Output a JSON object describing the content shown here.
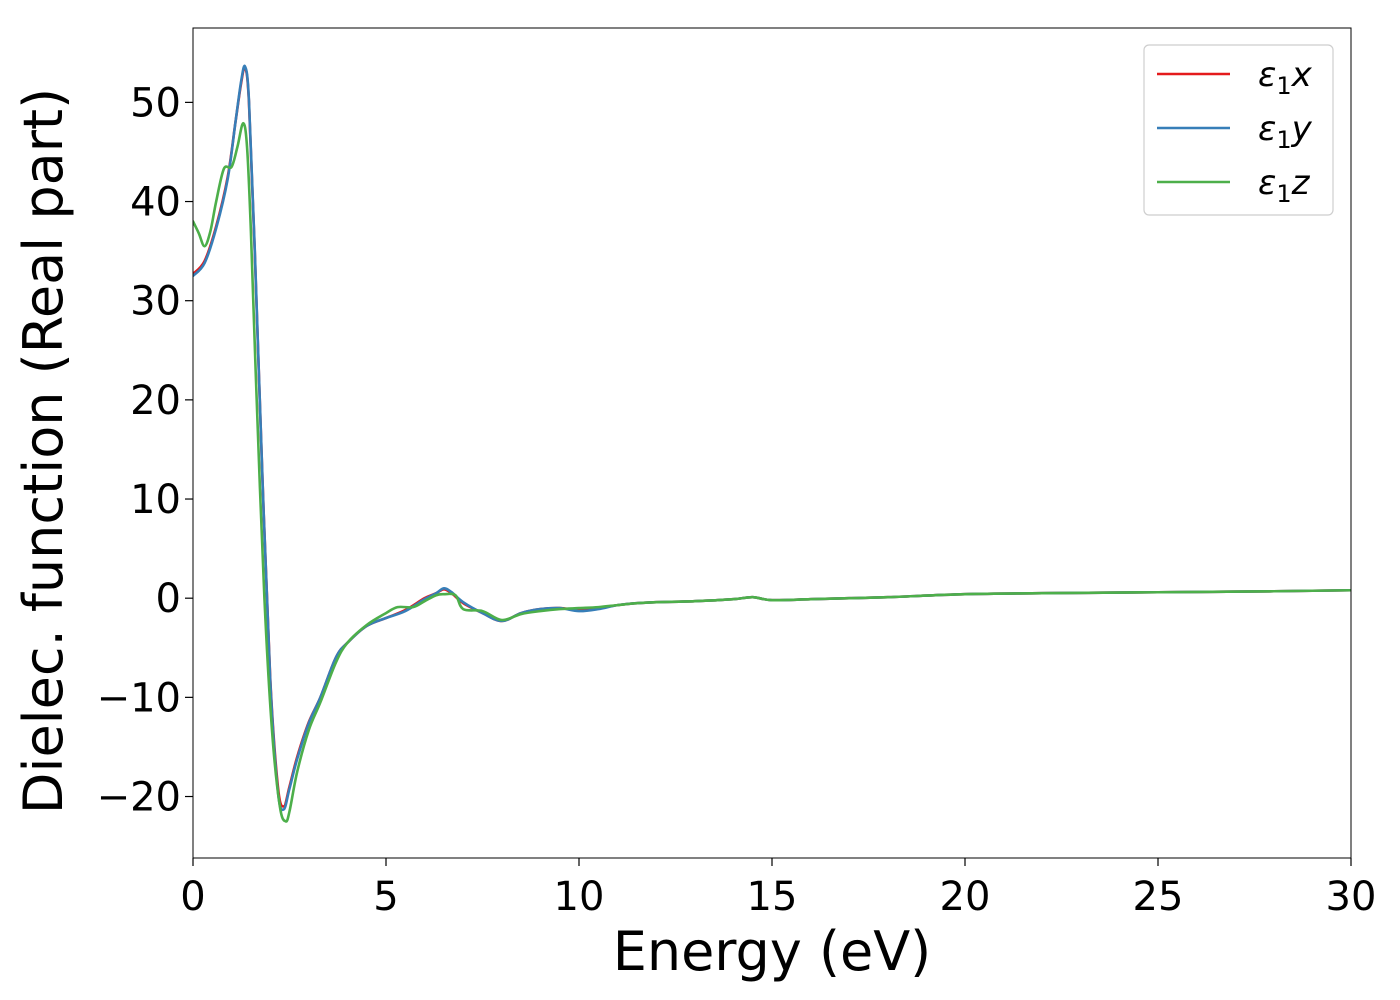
{
  "chart_data": {
    "type": "line",
    "title": "",
    "xlabel": "Energy (eV)",
    "ylabel": "Dielec. function (Real part)",
    "xlim": [
      0,
      30
    ],
    "ylim": [
      -26.2,
      57.5
    ],
    "xticks": [
      0,
      5,
      10,
      15,
      20,
      25,
      30
    ],
    "xtick_labels": [
      "0",
      "5",
      "10",
      "15",
      "20",
      "25",
      "30"
    ],
    "yticks": [
      -20,
      -10,
      0,
      10,
      20,
      30,
      40,
      50
    ],
    "ytick_labels": [
      "−20",
      "−10",
      "0",
      "10",
      "20",
      "30",
      "40",
      "50"
    ],
    "grid": false,
    "legend_position": "top-right",
    "series": [
      {
        "name": "ε₁x",
        "legend_base": "ε",
        "legend_sub": "1",
        "legend_var": "x",
        "color": "#e41a1c",
        "x": [
          0,
          0.3,
          0.6,
          0.9,
          1.1,
          1.25,
          1.35,
          1.45,
          1.6,
          1.8,
          2.0,
          2.2,
          2.35,
          2.5,
          2.7,
          3.0,
          3.3,
          3.7,
          4.0,
          4.5,
          5.0,
          5.5,
          6.0,
          6.3,
          6.5,
          6.7,
          7.0,
          7.5,
          8.0,
          8.5,
          9.0,
          9.5,
          10.0,
          10.5,
          11.0,
          11.5,
          12.0,
          13.0,
          14.0,
          14.5,
          15.0,
          16.0,
          17.0,
          18.0,
          20.0,
          22.0,
          25.0,
          28.0,
          30.0
        ],
        "y": [
          32.7,
          34.0,
          37.5,
          42.5,
          48.0,
          52.0,
          53.5,
          50.0,
          35.0,
          12.0,
          -8.0,
          -19.0,
          -21.0,
          -19.0,
          -16.0,
          -12.5,
          -10.0,
          -6.0,
          -4.5,
          -2.8,
          -2.0,
          -1.2,
          0.0,
          0.5,
          0.9,
          0.5,
          -0.5,
          -1.5,
          -2.3,
          -1.5,
          -1.1,
          -1.0,
          -1.2,
          -1.0,
          -0.7,
          -0.5,
          -0.4,
          -0.3,
          -0.1,
          0.1,
          -0.2,
          -0.1,
          0.0,
          0.1,
          0.4,
          0.5,
          0.6,
          0.7,
          0.8
        ]
      },
      {
        "name": "ε₁y",
        "legend_base": "ε",
        "legend_sub": "1",
        "legend_var": "y",
        "color": "#377eb8",
        "x": [
          0,
          0.3,
          0.6,
          0.9,
          1.1,
          1.25,
          1.35,
          1.45,
          1.6,
          1.8,
          2.0,
          2.2,
          2.35,
          2.5,
          2.7,
          3.0,
          3.3,
          3.7,
          4.0,
          4.5,
          5.0,
          5.5,
          6.0,
          6.3,
          6.5,
          6.7,
          7.0,
          7.5,
          8.0,
          8.5,
          9.0,
          9.5,
          10.0,
          10.5,
          11.0,
          11.5,
          12.0,
          13.0,
          14.0,
          14.5,
          15.0,
          16.0,
          17.0,
          18.0,
          20.0,
          22.0,
          25.0,
          28.0,
          30.0
        ],
        "y": [
          32.5,
          33.8,
          37.3,
          42.3,
          48.0,
          52.2,
          53.6,
          50.2,
          35.2,
          12.0,
          -8.2,
          -19.5,
          -21.3,
          -19.2,
          -16.2,
          -12.6,
          -10.0,
          -6.0,
          -4.5,
          -2.8,
          -2.0,
          -1.3,
          -0.1,
          0.5,
          1.0,
          0.6,
          -0.4,
          -1.5,
          -2.3,
          -1.5,
          -1.1,
          -1.0,
          -1.3,
          -1.1,
          -0.7,
          -0.5,
          -0.4,
          -0.3,
          -0.1,
          0.1,
          -0.2,
          -0.1,
          0.0,
          0.1,
          0.4,
          0.5,
          0.6,
          0.7,
          0.8
        ]
      },
      {
        "name": "ε₁z",
        "legend_base": "ε",
        "legend_sub": "1",
        "legend_var": "z",
        "color": "#4daf4a",
        "x": [
          0,
          0.15,
          0.3,
          0.45,
          0.6,
          0.8,
          1.0,
          1.15,
          1.3,
          1.4,
          1.5,
          1.65,
          1.85,
          2.05,
          2.25,
          2.4,
          2.5,
          2.7,
          3.0,
          3.3,
          3.7,
          4.0,
          4.5,
          5.0,
          5.3,
          5.7,
          6.0,
          6.3,
          6.5,
          6.8,
          7.0,
          7.5,
          8.0,
          8.5,
          9.0,
          9.5,
          10.0,
          10.5,
          11.0,
          11.5,
          12.0,
          13.0,
          14.0,
          14.5,
          15.0,
          16.0,
          17.0,
          18.0,
          20.0,
          22.0,
          25.0,
          28.0,
          30.0
        ],
        "y": [
          38.0,
          36.8,
          35.5,
          37.0,
          40.0,
          43.3,
          43.5,
          45.5,
          47.9,
          45.5,
          37.0,
          20.0,
          0.0,
          -13.5,
          -21.0,
          -22.5,
          -21.5,
          -17.5,
          -13.3,
          -10.5,
          -6.5,
          -4.5,
          -2.7,
          -1.5,
          -0.9,
          -0.9,
          -0.3,
          0.3,
          0.4,
          0.3,
          -1.1,
          -1.3,
          -2.2,
          -1.6,
          -1.3,
          -1.1,
          -1.0,
          -0.9,
          -0.7,
          -0.5,
          -0.4,
          -0.3,
          -0.1,
          0.1,
          -0.2,
          -0.1,
          0.0,
          0.1,
          0.4,
          0.5,
          0.6,
          0.7,
          0.8
        ]
      }
    ]
  }
}
